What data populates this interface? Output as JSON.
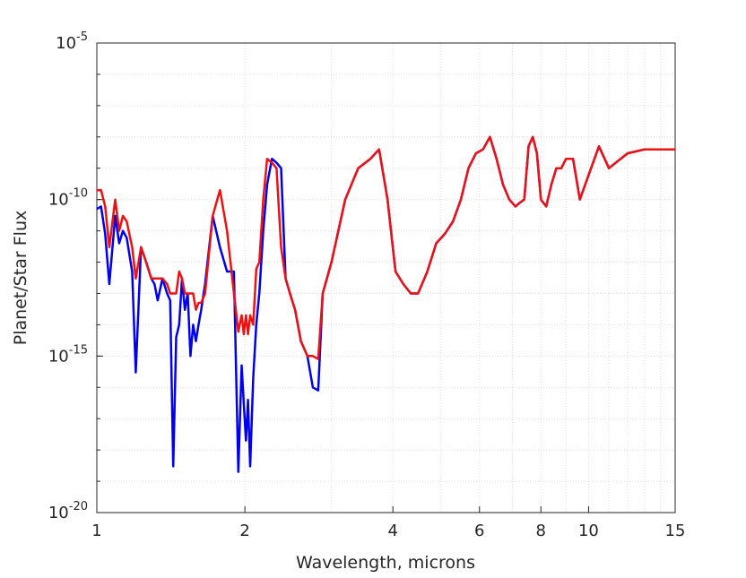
{
  "chart_data": {
    "type": "line",
    "title": "",
    "xlabel": "Wavelength, microns",
    "ylabel": "Planet/Star Flux",
    "x_scale": "log",
    "y_scale": "log",
    "xlim": [
      1,
      15
    ],
    "ylim": [
      1e-20,
      1e-05
    ],
    "grid": true,
    "legend": "none",
    "x_ticks": [
      {
        "value": 1,
        "label": "1"
      },
      {
        "value": 2,
        "label": "2"
      },
      {
        "value": 4,
        "label": "4"
      },
      {
        "value": 6,
        "label": "6"
      },
      {
        "value": 8,
        "label": "8"
      },
      {
        "value": 10,
        "label": "10"
      },
      {
        "value": 15,
        "label": "15"
      }
    ],
    "y_ticks": [
      {
        "value": 1e-20,
        "base": "10",
        "exp": "-20"
      },
      {
        "value": 1e-15,
        "base": "10",
        "exp": "-15"
      },
      {
        "value": 1e-10,
        "base": "10",
        "exp": "-10"
      },
      {
        "value": 1e-05,
        "base": "10",
        "exp": "-5"
      }
    ],
    "series": [
      {
        "color": "#0000ee",
        "x": [
          1.0,
          1.02,
          1.04,
          1.06,
          1.09,
          1.11,
          1.13,
          1.15,
          1.18,
          1.2,
          1.23,
          1.26,
          1.29,
          1.31,
          1.33,
          1.36,
          1.39,
          1.41,
          1.43,
          1.45,
          1.47,
          1.49,
          1.51,
          1.53,
          1.55,
          1.57,
          1.59,
          1.61,
          1.63,
          1.66,
          1.72,
          1.78,
          1.84,
          1.9,
          1.94,
          1.97,
          1.99,
          2.01,
          2.03,
          2.05,
          2.08,
          2.11,
          2.14,
          2.18,
          2.22,
          2.27,
          2.32,
          2.37,
          2.42,
          2.47,
          2.53,
          2.6,
          2.68,
          2.75,
          2.82,
          2.88,
          3.0,
          3.2,
          3.4,
          3.6,
          3.75,
          3.9,
          4.05,
          4.2,
          4.35,
          4.5,
          4.7,
          4.9,
          5.1,
          5.3,
          5.5,
          5.7,
          5.9,
          6.1,
          6.3,
          6.5,
          6.7,
          6.9,
          7.1,
          7.25,
          7.4,
          7.55,
          7.7,
          7.85,
          8.0,
          8.2,
          8.4,
          8.6,
          8.8,
          9.0,
          9.3,
          9.6,
          10.0,
          10.5,
          11.0,
          12.0,
          13.0,
          14.0,
          15.0
        ],
        "y": [
          5e-11,
          6e-11,
          8e-12,
          2e-13,
          3e-11,
          4e-12,
          1e-11,
          6e-12,
          5e-13,
          3e-16,
          3e-12,
          1e-12,
          3e-13,
          2e-13,
          6e-14,
          3e-13,
          1e-13,
          6e-14,
          3e-19,
          4e-15,
          1e-14,
          3e-13,
          3e-14,
          1e-13,
          1e-15,
          1e-14,
          3e-15,
          1e-14,
          3e-14,
          2e-13,
          3e-11,
          3e-12,
          5e-13,
          5e-13,
          2e-19,
          5e-16,
          3e-17,
          2e-18,
          4e-17,
          3e-19,
          2e-16,
          1e-14,
          1e-13,
          1e-11,
          3e-10,
          2e-09,
          1.5e-09,
          1e-09,
          3e-13,
          1e-13,
          3e-14,
          3e-15,
          1e-15,
          1e-16,
          8e-17,
          1e-13,
          1e-12,
          1e-10,
          1e-09,
          2e-09,
          4e-09,
          1e-10,
          5e-13,
          2e-13,
          1e-13,
          1e-13,
          5e-13,
          4e-12,
          8e-12,
          2e-11,
          1e-10,
          1e-09,
          3e-09,
          4e-09,
          1e-08,
          2e-09,
          3e-10,
          1e-10,
          6e-11,
          8e-11,
          1e-10,
          5e-09,
          1e-08,
          3e-09,
          1e-10,
          6e-11,
          3e-10,
          1e-09,
          1e-09,
          2e-09,
          2e-09,
          1e-10,
          6e-10,
          5e-09,
          1e-09,
          3e-09,
          4e-09,
          4e-09,
          4e-09
        ]
      },
      {
        "color": "#ee1111",
        "x": [
          1.0,
          1.02,
          1.04,
          1.06,
          1.09,
          1.11,
          1.13,
          1.15,
          1.18,
          1.2,
          1.23,
          1.26,
          1.29,
          1.31,
          1.33,
          1.36,
          1.39,
          1.41,
          1.43,
          1.45,
          1.47,
          1.49,
          1.51,
          1.53,
          1.55,
          1.57,
          1.59,
          1.61,
          1.63,
          1.66,
          1.72,
          1.78,
          1.84,
          1.9,
          1.94,
          1.97,
          1.99,
          2.01,
          2.03,
          2.05,
          2.08,
          2.11,
          2.14,
          2.18,
          2.22,
          2.27,
          2.32,
          2.37,
          2.42,
          2.47,
          2.53,
          2.6,
          2.68,
          2.75,
          2.82,
          2.88,
          3.0,
          3.2,
          3.4,
          3.6,
          3.75,
          3.9,
          4.05,
          4.2,
          4.35,
          4.5,
          4.7,
          4.9,
          5.1,
          5.3,
          5.5,
          5.7,
          5.9,
          6.1,
          6.3,
          6.5,
          6.7,
          6.9,
          7.1,
          7.25,
          7.4,
          7.55,
          7.7,
          7.85,
          8.0,
          8.2,
          8.4,
          8.6,
          8.8,
          9.0,
          9.3,
          9.6,
          10.0,
          10.5,
          11.0,
          12.0,
          13.0,
          14.0,
          15.0
        ],
        "y": [
          2e-10,
          2e-10,
          6e-11,
          3e-12,
          1e-10,
          1e-11,
          3e-11,
          2e-11,
          3e-12,
          3e-13,
          3e-12,
          1e-12,
          3e-13,
          3e-13,
          3e-13,
          3e-13,
          2e-13,
          1e-13,
          1e-13,
          1e-13,
          5e-13,
          3e-13,
          1e-13,
          1e-13,
          1e-13,
          1e-13,
          3e-14,
          5e-14,
          5e-14,
          1e-13,
          3e-11,
          2e-10,
          1e-11,
          1e-13,
          6e-15,
          2e-14,
          5e-15,
          2e-14,
          5e-15,
          2e-14,
          1e-14,
          6e-13,
          1e-12,
          1e-10,
          2e-09,
          1.5e-09,
          1e-09,
          3e-12,
          3e-13,
          1e-13,
          3e-14,
          3e-15,
          1e-15,
          1e-15,
          8e-16,
          1e-13,
          1e-12,
          1e-10,
          1e-09,
          2e-09,
          4e-09,
          1e-10,
          5e-13,
          2e-13,
          1e-13,
          1e-13,
          5e-13,
          4e-12,
          8e-12,
          2e-11,
          1e-10,
          1e-09,
          3e-09,
          4e-09,
          1e-08,
          2e-09,
          3e-10,
          1e-10,
          6e-11,
          8e-11,
          1e-10,
          5e-09,
          1e-08,
          3e-09,
          1e-10,
          6e-11,
          3e-10,
          1e-09,
          1e-09,
          2e-09,
          2e-09,
          1e-10,
          6e-10,
          5e-09,
          1e-09,
          3e-09,
          4e-09,
          4e-09,
          4e-09
        ]
      }
    ]
  }
}
